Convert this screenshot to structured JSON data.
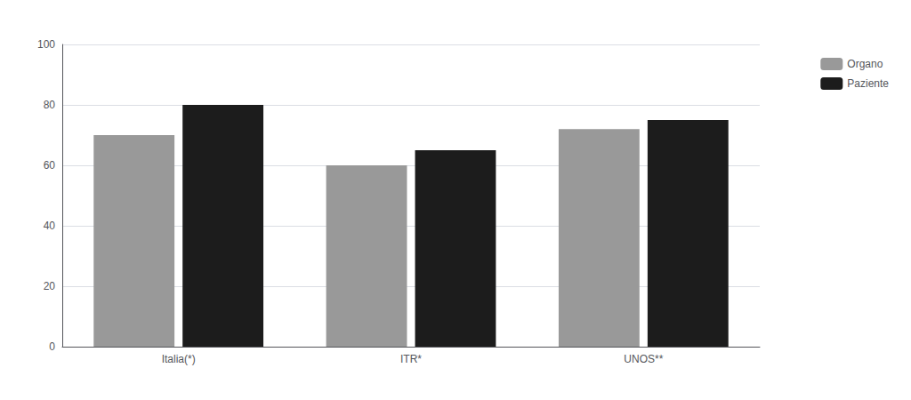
{
  "chart_data": {
    "type": "bar",
    "categories": [
      "Italia(*)",
      "ITR*",
      "UNOS**"
    ],
    "series": [
      {
        "name": "Organo",
        "color": "#999999",
        "values": [
          70,
          60,
          72
        ]
      },
      {
        "name": "Paziente",
        "color": "#1c1c1c",
        "values": [
          80,
          65,
          75
        ]
      }
    ],
    "ylim": [
      0,
      100
    ],
    "yticks": [
      0,
      20,
      40,
      60,
      80,
      100
    ],
    "grid": true,
    "legend": "upper right"
  }
}
